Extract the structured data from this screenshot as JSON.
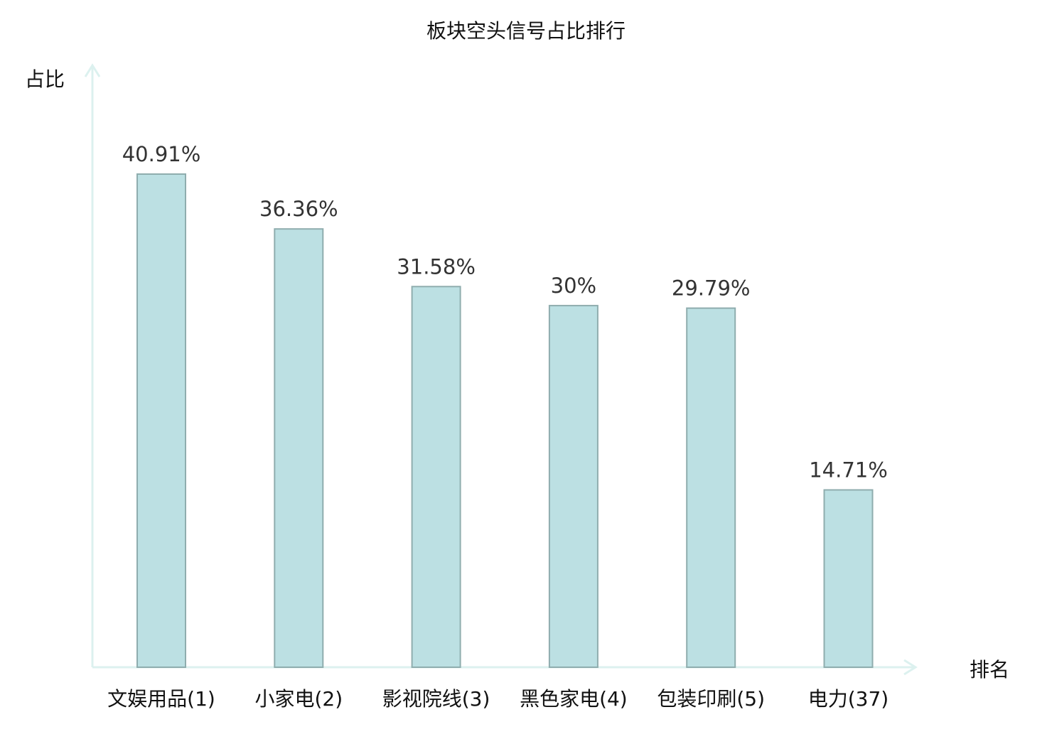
{
  "chart_data": {
    "type": "bar",
    "title": "板块空头信号占比排行",
    "xlabel": "排名",
    "ylabel": "占比",
    "categories": [
      "文娱用品(1)",
      "小家电(2)",
      "影视院线(3)",
      "黑色家电(4)",
      "包装印刷(5)",
      "电力(37)"
    ],
    "values": [
      40.91,
      36.36,
      31.58,
      30,
      29.79,
      14.71
    ],
    "value_labels": [
      "40.91%",
      "36.36%",
      "31.58%",
      "30%",
      "29.79%",
      "14.71%"
    ],
    "highlight_index": 5,
    "grid": false,
    "colors": {
      "bar_fill": "#bce0e3",
      "bar_stroke": "#8fadae",
      "axis": "#dcf1ef",
      "highlight_label": "#e8161a",
      "label": "#111111",
      "value_label": "#333333"
    }
  }
}
